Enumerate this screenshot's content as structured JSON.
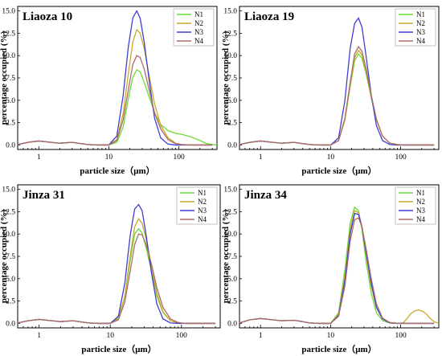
{
  "colors": {
    "N1": "#66dd33",
    "N2": "#c9a92a",
    "N3": "#3f3fd0",
    "N4": "#b06a6a"
  },
  "chart_data": [
    {
      "type": "line",
      "title": "Liaoza 10",
      "xlabel": "particle size（μm）",
      "ylabel": "percentage occupied (%)",
      "x_scale": "log",
      "xlim": [
        0.5,
        350
      ],
      "ylim": [
        -0.5,
        15.5
      ],
      "yticks": [
        "0.0",
        "2.5",
        "5.0",
        "7.5",
        "10.0",
        "12.5",
        "15.0"
      ],
      "xticks": [
        "1",
        "10",
        "100"
      ],
      "legend": "top-right",
      "series": [
        {
          "name": "N1",
          "x": [
            0.5,
            0.7,
            1,
            1.5,
            2,
            3,
            4,
            5,
            7,
            10,
            13,
            16,
            19,
            22,
            25,
            28,
            32,
            38,
            45,
            55,
            70,
            90,
            110,
            150,
            200,
            250,
            300,
            350
          ],
          "y": [
            0.05,
            0.3,
            0.45,
            0.3,
            0.2,
            0.3,
            0.15,
            0.05,
            0,
            0,
            0.3,
            2,
            5.2,
            7.6,
            8.4,
            8.2,
            7,
            5.3,
            3.6,
            2.3,
            1.6,
            1.3,
            1.2,
            0.9,
            0.5,
            0.15,
            0.05,
            0
          ]
        },
        {
          "name": "N2",
          "x": [
            0.5,
            0.7,
            1,
            1.5,
            2,
            3,
            4,
            5,
            7,
            10,
            13,
            16,
            19,
            22,
            25,
            28,
            32,
            38,
            45,
            55,
            70,
            90,
            110,
            150,
            200,
            300
          ],
          "y": [
            0.05,
            0.3,
            0.45,
            0.3,
            0.2,
            0.3,
            0.15,
            0.05,
            0,
            0,
            0.6,
            3.5,
            8,
            11.5,
            12.9,
            12.5,
            10.8,
            7.6,
            4.6,
            2.2,
            0.8,
            0.2,
            0.05,
            0,
            0,
            0
          ]
        },
        {
          "name": "N3",
          "x": [
            0.5,
            0.7,
            1,
            1.5,
            2,
            3,
            4,
            5,
            7,
            10,
            13,
            16,
            19,
            22,
            25,
            28,
            32,
            38,
            45,
            55,
            70,
            90,
            110,
            150,
            200,
            300
          ],
          "y": [
            0.05,
            0.3,
            0.45,
            0.3,
            0.2,
            0.3,
            0.15,
            0.05,
            0,
            0,
            1,
            5.5,
            11,
            14.2,
            15,
            14.2,
            11.5,
            7,
            3,
            0.8,
            0.1,
            0,
            0,
            0,
            0,
            0
          ]
        },
        {
          "name": "N4",
          "x": [
            0.5,
            0.7,
            1,
            1.5,
            2,
            3,
            4,
            5,
            7,
            10,
            13,
            16,
            19,
            22,
            25,
            28,
            32,
            38,
            45,
            55,
            70,
            90,
            110,
            150,
            200,
            300
          ],
          "y": [
            0.05,
            0.3,
            0.45,
            0.3,
            0.2,
            0.3,
            0.15,
            0.05,
            0,
            0,
            0.5,
            2.8,
            6.2,
            9,
            10,
            9.8,
            8.5,
            6,
            3.6,
            1.8,
            0.6,
            0.15,
            0.05,
            0,
            0,
            0
          ]
        }
      ]
    },
    {
      "type": "line",
      "title": "Liaoza 19",
      "xlabel": "particle size（μm）",
      "ylabel": "percentage occupied (%)",
      "x_scale": "log",
      "xlim": [
        0.5,
        350
      ],
      "ylim": [
        -0.5,
        15.5
      ],
      "yticks": [
        "0.0",
        "2.5",
        "5.0",
        "7.5",
        "10.0",
        "12.5",
        "15.0"
      ],
      "xticks": [
        "1",
        "10",
        "100"
      ],
      "legend": "top-right",
      "series": [
        {
          "name": "N1",
          "x": [
            0.5,
            0.7,
            1,
            1.5,
            2,
            3,
            4,
            5,
            7,
            10,
            13,
            16,
            19,
            22,
            25,
            28,
            32,
            38,
            45,
            55,
            70,
            90,
            110,
            150,
            200,
            300
          ],
          "y": [
            0.05,
            0.3,
            0.45,
            0.3,
            0.2,
            0.3,
            0.15,
            0.05,
            0,
            0,
            0.5,
            2.8,
            6.5,
            9.4,
            10.2,
            9.7,
            8,
            5.3,
            2.8,
            1,
            0.2,
            0.05,
            0,
            0,
            0,
            0
          ]
        },
        {
          "name": "N2",
          "x": [
            0.5,
            0.7,
            1,
            1.5,
            2,
            3,
            4,
            5,
            7,
            10,
            13,
            16,
            19,
            22,
            25,
            28,
            32,
            38,
            45,
            55,
            70,
            90,
            110,
            150,
            200,
            300
          ],
          "y": [
            0.05,
            0.3,
            0.45,
            0.3,
            0.2,
            0.3,
            0.15,
            0.05,
            0,
            0,
            0.5,
            2.9,
            6.8,
            9.8,
            10.6,
            10.1,
            8.3,
            5.5,
            2.9,
            1,
            0.2,
            0.05,
            0,
            0,
            0,
            0
          ]
        },
        {
          "name": "N3",
          "x": [
            0.5,
            0.7,
            1,
            1.5,
            2,
            3,
            4,
            5,
            7,
            10,
            13,
            16,
            19,
            22,
            25,
            28,
            32,
            38,
            45,
            55,
            70,
            90,
            110,
            150,
            200,
            300
          ],
          "y": [
            0.05,
            0.3,
            0.45,
            0.3,
            0.2,
            0.3,
            0.15,
            0.05,
            0,
            0,
            0.8,
            5,
            10.8,
            13.6,
            14.2,
            13.2,
            10,
            5.6,
            2.2,
            0.5,
            0.05,
            0,
            0,
            0,
            0,
            0
          ]
        },
        {
          "name": "N4",
          "x": [
            0.5,
            0.7,
            1,
            1.5,
            2,
            3,
            4,
            5,
            7,
            10,
            13,
            16,
            19,
            22,
            25,
            28,
            32,
            38,
            45,
            55,
            70,
            90,
            110,
            150,
            200,
            300
          ],
          "y": [
            0.05,
            0.3,
            0.45,
            0.3,
            0.2,
            0.3,
            0.15,
            0.05,
            0,
            0,
            0.5,
            3,
            7,
            10.2,
            11,
            10.5,
            8.6,
            5.6,
            2.9,
            1,
            0.2,
            0.05,
            0,
            0,
            0,
            0
          ]
        }
      ]
    },
    {
      "type": "line",
      "title": "Jinza 31",
      "xlabel": "particle size（μm）",
      "ylabel": "percentage occupied (%)",
      "x_scale": "log",
      "xlim": [
        0.5,
        350
      ],
      "ylim": [
        -0.5,
        15.5
      ],
      "yticks": [
        "0.0",
        "2.5",
        "5.0",
        "7.5",
        "10.0",
        "12.5",
        "15.0"
      ],
      "xticks": [
        "1",
        "10",
        "100"
      ],
      "legend": "top-right",
      "series": [
        {
          "name": "N1",
          "x": [
            0.5,
            0.7,
            1,
            1.5,
            2,
            3,
            4,
            5,
            7,
            10,
            13,
            16,
            19,
            22,
            25,
            28,
            32,
            38,
            45,
            55,
            70,
            90,
            110,
            150,
            200,
            300
          ],
          "y": [
            0.05,
            0.3,
            0.45,
            0.3,
            0.2,
            0.3,
            0.15,
            0.05,
            0,
            0,
            0.6,
            3,
            7,
            10,
            10.6,
            10.1,
            8.4,
            5.8,
            3.1,
            1.2,
            0.3,
            0.05,
            0,
            0,
            0,
            0
          ]
        },
        {
          "name": "N2",
          "x": [
            0.5,
            0.7,
            1,
            1.5,
            2,
            3,
            4,
            5,
            7,
            10,
            13,
            16,
            19,
            22,
            25,
            28,
            32,
            38,
            45,
            55,
            70,
            90,
            110,
            150,
            200,
            300
          ],
          "y": [
            0.05,
            0.3,
            0.45,
            0.3,
            0.2,
            0.3,
            0.15,
            0.05,
            0,
            0,
            0.5,
            3,
            7.5,
            10.8,
            11.7,
            11.2,
            9.4,
            6.4,
            3.4,
            1.3,
            0.3,
            0.05,
            0,
            0,
            0,
            0
          ]
        },
        {
          "name": "N3",
          "x": [
            0.5,
            0.7,
            1,
            1.5,
            2,
            3,
            4,
            5,
            7,
            10,
            13,
            16,
            19,
            22,
            25,
            28,
            32,
            38,
            45,
            55,
            70,
            90,
            110,
            150,
            200,
            300
          ],
          "y": [
            0.05,
            0.3,
            0.45,
            0.3,
            0.2,
            0.3,
            0.15,
            0.05,
            0,
            0,
            0.8,
            4.5,
            9.8,
            12.8,
            13.3,
            12.6,
            9.8,
            5.6,
            2.2,
            0.5,
            0.05,
            0,
            0,
            0,
            0,
            0
          ]
        },
        {
          "name": "N4",
          "x": [
            0.5,
            0.7,
            1,
            1.5,
            2,
            3,
            4,
            5,
            7,
            10,
            13,
            16,
            19,
            22,
            25,
            28,
            32,
            38,
            45,
            55,
            70,
            90,
            110,
            150,
            200,
            300
          ],
          "y": [
            0.05,
            0.3,
            0.45,
            0.3,
            0.2,
            0.3,
            0.15,
            0.05,
            0,
            0,
            0.4,
            2.4,
            5.8,
            8.8,
            10,
            9.9,
            8.8,
            6.6,
            4,
            1.8,
            0.5,
            0.1,
            0,
            0,
            0,
            0
          ]
        }
      ]
    },
    {
      "type": "line",
      "title": "Jinza 34",
      "xlabel": "particle size（μm）",
      "ylabel": "percentage occupied (%)",
      "x_scale": "log",
      "xlim": [
        0.5,
        350
      ],
      "ylim": [
        -0.5,
        15.5
      ],
      "yticks": [
        "0.0",
        "2.5",
        "5.0",
        "7.5",
        "10.0",
        "12.5",
        "15.0"
      ],
      "xticks": [
        "1",
        "10",
        "100"
      ],
      "legend": "top-right",
      "series": [
        {
          "name": "N1",
          "x": [
            0.5,
            0.7,
            1,
            1.5,
            2,
            3,
            4,
            5,
            7,
            10,
            13,
            16,
            19,
            22,
            25,
            28,
            32,
            38,
            45,
            55,
            70,
            90,
            110,
            150,
            200,
            300
          ],
          "y": [
            0.05,
            0.4,
            0.55,
            0.4,
            0.3,
            0.35,
            0.2,
            0.05,
            0,
            0,
            1.2,
            6,
            11.2,
            13,
            12.6,
            10.5,
            7,
            3.4,
            1.2,
            0.3,
            0.05,
            0,
            0,
            0,
            0,
            0
          ]
        },
        {
          "name": "N2",
          "x": [
            0.5,
            0.7,
            1,
            1.5,
            2,
            3,
            4,
            5,
            7,
            10,
            13,
            16,
            19,
            22,
            25,
            28,
            32,
            38,
            45,
            55,
            70,
            90,
            100,
            110,
            125,
            140,
            160,
            180,
            200,
            230,
            260,
            300,
            350
          ],
          "y": [
            0.05,
            0.4,
            0.55,
            0.4,
            0.3,
            0.35,
            0.2,
            0.05,
            0,
            0,
            1,
            5.2,
            10.5,
            12.6,
            12.4,
            10.8,
            7.8,
            4.2,
            1.8,
            0.5,
            0.1,
            0.02,
            0,
            0.1,
            0.6,
            1.1,
            1.4,
            1.5,
            1.4,
            1.1,
            0.6,
            0.2,
            0
          ]
        },
        {
          "name": "N3",
          "x": [
            0.5,
            0.7,
            1,
            1.5,
            2,
            3,
            4,
            5,
            7,
            10,
            13,
            16,
            19,
            22,
            25,
            28,
            32,
            38,
            45,
            55,
            70,
            90,
            110,
            150,
            200,
            300
          ],
          "y": [
            0.05,
            0.4,
            0.55,
            0.4,
            0.3,
            0.35,
            0.2,
            0.05,
            0,
            0,
            0.9,
            4.8,
            10,
            12.3,
            12.2,
            10.8,
            8,
            4.5,
            1.8,
            0.5,
            0.05,
            0,
            0,
            0,
            0,
            0
          ]
        },
        {
          "name": "N4",
          "x": [
            0.5,
            0.7,
            1,
            1.5,
            2,
            3,
            4,
            5,
            7,
            10,
            13,
            16,
            19,
            22,
            25,
            28,
            32,
            38,
            45,
            55,
            70,
            90,
            110,
            150,
            200,
            300
          ],
          "y": [
            0.05,
            0.4,
            0.55,
            0.4,
            0.3,
            0.35,
            0.2,
            0.05,
            0,
            0,
            0.8,
            4.2,
            9.2,
            11.6,
            11.8,
            10.8,
            8.4,
            5,
            2.2,
            0.6,
            0.1,
            0,
            0,
            0,
            0,
            0
          ]
        }
      ]
    }
  ]
}
